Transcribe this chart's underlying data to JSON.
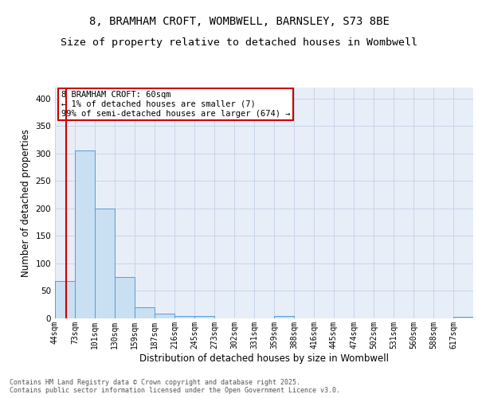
{
  "title": "8, BRAMHAM CROFT, WOMBWELL, BARNSLEY, S73 8BE",
  "subtitle": "Size of property relative to detached houses in Wombwell",
  "xlabel": "Distribution of detached houses by size in Wombwell",
  "ylabel": "Number of detached properties",
  "bins": [
    "44sqm",
    "73sqm",
    "101sqm",
    "130sqm",
    "159sqm",
    "187sqm",
    "216sqm",
    "245sqm",
    "273sqm",
    "302sqm",
    "331sqm",
    "359sqm",
    "388sqm",
    "416sqm",
    "445sqm",
    "474sqm",
    "502sqm",
    "531sqm",
    "560sqm",
    "588sqm",
    "617sqm"
  ],
  "values": [
    68,
    305,
    200,
    76,
    20,
    9,
    5,
    4,
    0,
    0,
    0,
    4,
    0,
    0,
    0,
    0,
    0,
    0,
    0,
    0,
    3
  ],
  "bar_color": "#c9dff2",
  "bar_edge_color": "#5b9bd5",
  "grid_color": "#c8d4e8",
  "background_color": "#e8eef8",
  "vline_color": "#cc0000",
  "annotation_text": "8 BRAMHAM CROFT: 60sqm\n← 1% of detached houses are smaller (7)\n99% of semi-detached houses are larger (674) →",
  "annotation_box_color": "#ffffff",
  "annotation_box_edge": "#cc0000",
  "ylim": [
    0,
    420
  ],
  "yticks": [
    0,
    50,
    100,
    150,
    200,
    250,
    300,
    350,
    400
  ],
  "footer": "Contains HM Land Registry data © Crown copyright and database right 2025.\nContains public sector information licensed under the Open Government Licence v3.0.",
  "title_fontsize": 10,
  "subtitle_fontsize": 9.5,
  "tick_fontsize": 7,
  "ylabel_fontsize": 8.5,
  "xlabel_fontsize": 8.5,
  "annotation_fontsize": 7.5,
  "footer_fontsize": 6
}
